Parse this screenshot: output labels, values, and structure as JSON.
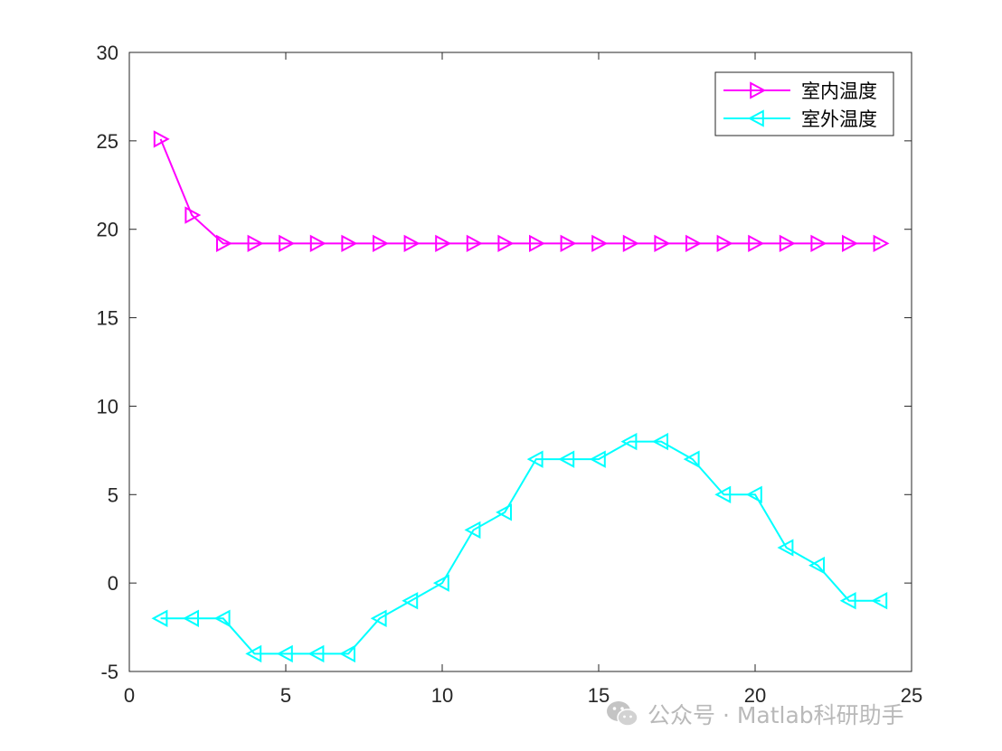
{
  "chart_data": {
    "type": "line",
    "x": [
      1,
      2,
      3,
      4,
      5,
      6,
      7,
      8,
      9,
      10,
      11,
      12,
      13,
      14,
      15,
      16,
      17,
      18,
      19,
      20,
      21,
      22,
      23,
      24
    ],
    "series": [
      {
        "name": "室内温度",
        "color": "#ff00ff",
        "marker": "triangle-right",
        "values": [
          25.1,
          20.8,
          19.2,
          19.2,
          19.2,
          19.2,
          19.2,
          19.2,
          19.2,
          19.2,
          19.2,
          19.2,
          19.2,
          19.2,
          19.2,
          19.2,
          19.2,
          19.2,
          19.2,
          19.2,
          19.2,
          19.2,
          19.2,
          19.2
        ]
      },
      {
        "name": "室外温度",
        "color": "#00ffff",
        "marker": "triangle-left",
        "values": [
          -2,
          -2,
          -2,
          -4,
          -4,
          -4,
          -4,
          -2,
          -1,
          0,
          3,
          4,
          7,
          7,
          7,
          8,
          8,
          7,
          5,
          5,
          2,
          1,
          -1,
          -1
        ]
      }
    ],
    "xlim": [
      0,
      25
    ],
    "ylim": [
      -5,
      30
    ],
    "xticks": [
      "0",
      "5",
      "10",
      "15",
      "20",
      "25"
    ],
    "yticks": [
      "-5",
      "0",
      "5",
      "10",
      "15",
      "20",
      "25",
      "30"
    ],
    "grid": false,
    "legend_position": "top-right"
  },
  "watermark": {
    "icon": "wechat-icon",
    "text": "公众号 · Matlab科研助手"
  }
}
